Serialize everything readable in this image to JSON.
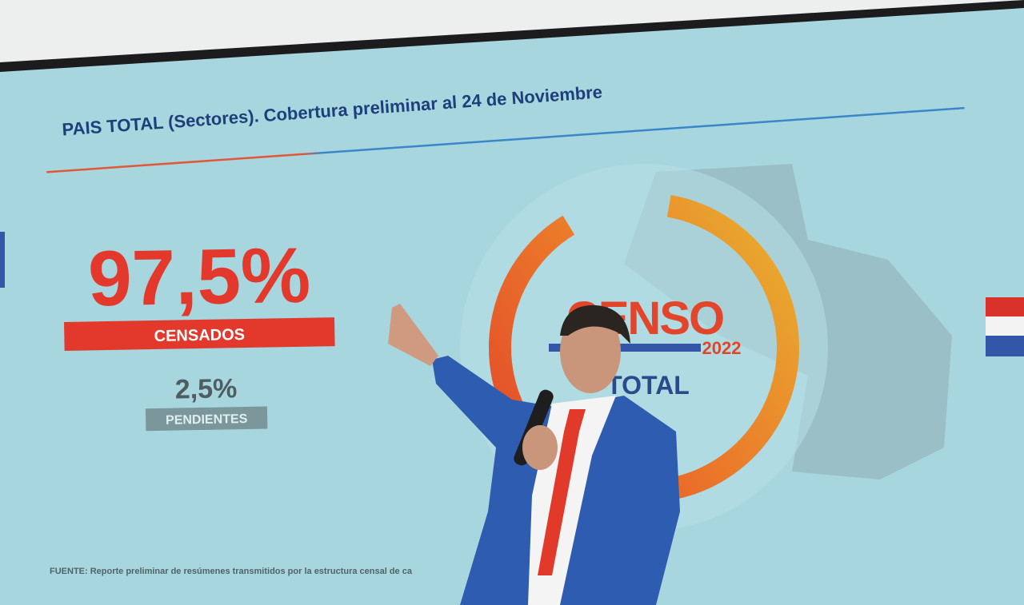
{
  "slide": {
    "title": "PAIS TOTAL (Sectores). Cobertura preliminar al 24 de Noviembre",
    "main_value": "97,5%",
    "main_label": "CENSADOS",
    "secondary_value": "2,5%",
    "secondary_label": "PENDIENTES",
    "logo_text": "CENSO",
    "logo_year": "2022",
    "logo_caption": "TOTAL",
    "footnote": "FUENTE: Reporte preliminar de resúmenes transmitidos por la estructura censal de ca"
  }
}
